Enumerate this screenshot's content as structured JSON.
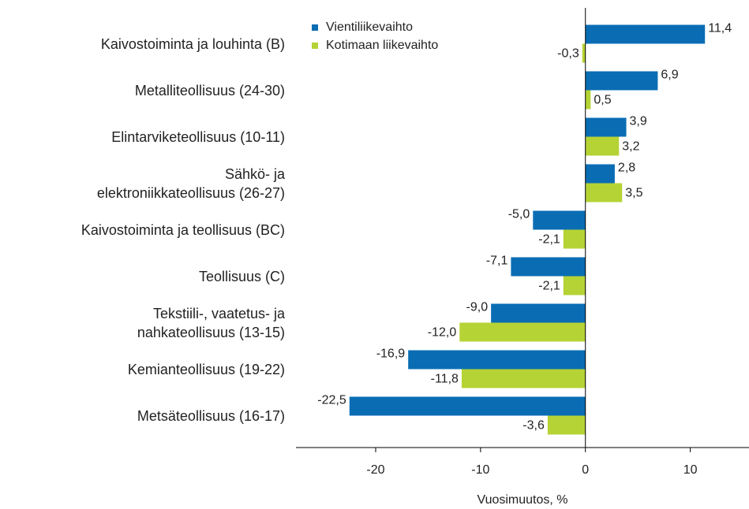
{
  "chart_data": {
    "type": "bar",
    "orientation": "horizontal",
    "x_label": "Vuosimuutos, %",
    "categories": [
      "Kaivostoiminta ja louhinta (B)",
      "Metalliteollisuus (24-30)",
      "Elintarviketeollisuus (10-11)",
      "Sähkö- ja\nelektroniikkateollisuus (26-27)",
      "Kaivostoiminta ja teollisuus (BC)",
      "Teollisuus (C)",
      "Tekstiili-, vaatetus- ja\nnahkateollisuus (13-15)",
      "Kemianteollisuus (19-22)",
      "Metsäteollisuus (16-17)"
    ],
    "series": [
      {
        "name": "Vientiliikevaihto",
        "color": "#0a6db4",
        "values": [
          11.4,
          6.9,
          3.9,
          2.8,
          -5.0,
          -7.1,
          -9.0,
          -16.9,
          -22.5
        ],
        "value_labels": [
          "11,4",
          "6,9",
          "3,9",
          "2,8",
          "-5,0",
          "-7,1",
          "-9,0",
          "-16,9",
          "-22,5"
        ]
      },
      {
        "name": "Kotimaan liikevaihto",
        "color": "#b5d334",
        "values": [
          -0.3,
          0.5,
          3.2,
          3.5,
          -2.1,
          -2.1,
          -12.0,
          -11.8,
          -3.6
        ],
        "value_labels": [
          "-0,3",
          "0,5",
          "3,2",
          "3,5",
          "-2,1",
          "-2,1",
          "-12,0",
          "-11,8",
          "-3,6"
        ]
      }
    ],
    "xlim": [
      -27.6,
      15.6
    ],
    "xticks": [
      -20,
      -10,
      0,
      10
    ],
    "legend": "top-left"
  }
}
